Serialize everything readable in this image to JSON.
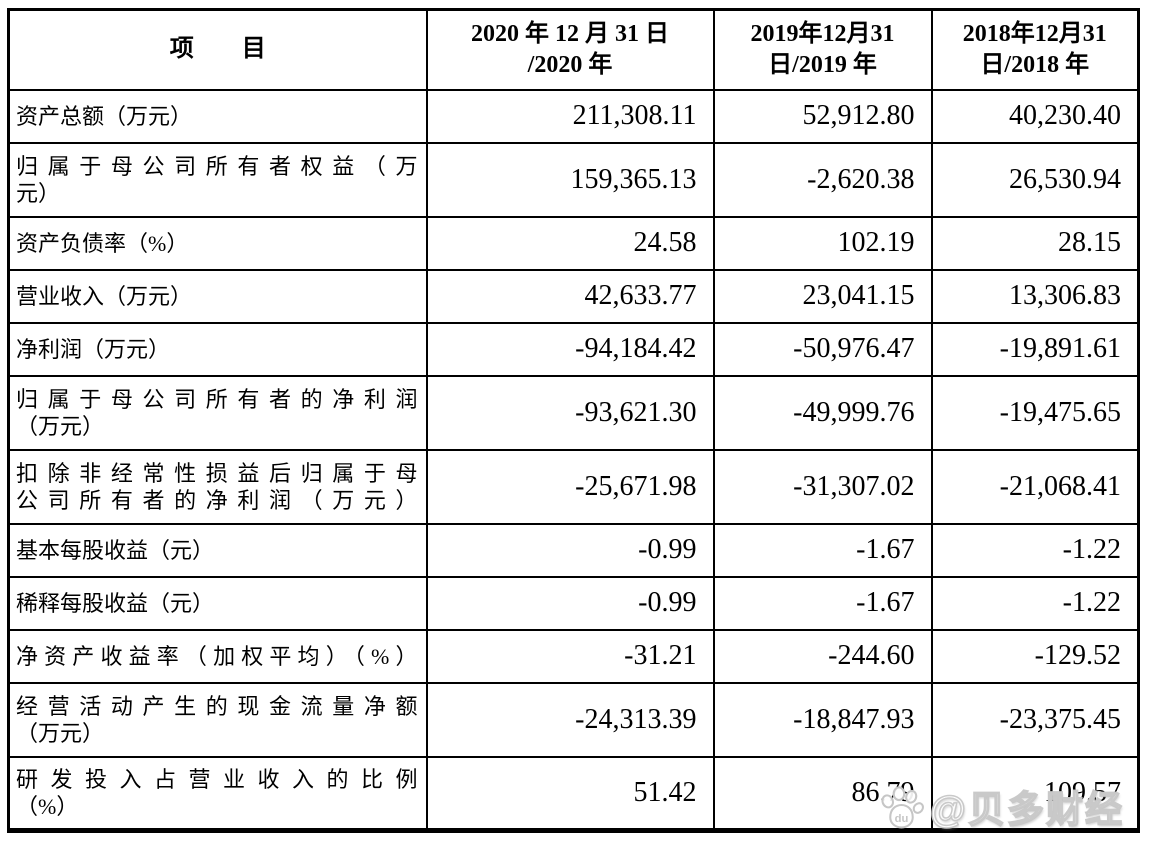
{
  "table": {
    "border_color": "#000000",
    "text_color": "#000000",
    "background": "#ffffff",
    "header": {
      "item_label": "项　　目",
      "year_columns": [
        {
          "line1": "2020 年 12 月 31 日",
          "line2": "/2020 年"
        },
        {
          "line1": "2019年12月31",
          "line2": "日/2019 年"
        },
        {
          "line1": "2018年12月31",
          "line2": "日/2018 年"
        }
      ]
    },
    "rows": [
      {
        "label_lines": [
          "资产总额（万元）"
        ],
        "stretch": [
          false
        ],
        "values": [
          "211,308.11",
          "52,912.80",
          "40,230.40"
        ]
      },
      {
        "label_lines": [
          "归属于母公司所有者权益（万",
          "元）"
        ],
        "stretch": [
          true,
          false
        ],
        "values": [
          "159,365.13",
          "-2,620.38",
          "26,530.94"
        ]
      },
      {
        "label_lines": [
          "资产负债率（%）"
        ],
        "stretch": [
          false
        ],
        "values": [
          "24.58",
          "102.19",
          "28.15"
        ]
      },
      {
        "label_lines": [
          "营业收入（万元）"
        ],
        "stretch": [
          false
        ],
        "values": [
          "42,633.77",
          "23,041.15",
          "13,306.83"
        ]
      },
      {
        "label_lines": [
          "净利润（万元）"
        ],
        "stretch": [
          false
        ],
        "values": [
          "-94,184.42",
          "-50,976.47",
          "-19,891.61"
        ]
      },
      {
        "label_lines": [
          "归属于母公司所有者的净利润",
          "（万元）"
        ],
        "stretch": [
          true,
          false
        ],
        "values": [
          "-93,621.30",
          "-49,999.76",
          "-19,475.65"
        ]
      },
      {
        "label_lines": [
          "扣除非经常性损益后归属于母",
          "公司所有者的净利润（万元）"
        ],
        "stretch": [
          true,
          true
        ],
        "values": [
          "-25,671.98",
          "-31,307.02",
          "-21,068.41"
        ]
      },
      {
        "label_lines": [
          "基本每股收益（元）"
        ],
        "stretch": [
          false
        ],
        "values": [
          "-0.99",
          "-1.67",
          "-1.22"
        ]
      },
      {
        "label_lines": [
          "稀释每股收益（元）"
        ],
        "stretch": [
          false
        ],
        "values": [
          "-0.99",
          "-1.67",
          "-1.22"
        ]
      },
      {
        "label_lines": [
          "净资产收益率（加权平均）（%）"
        ],
        "stretch": [
          true
        ],
        "values": [
          "-31.21",
          "-244.60",
          "-129.52"
        ]
      },
      {
        "label_lines": [
          "经营活动产生的现金流量净额",
          "（万元）"
        ],
        "stretch": [
          true,
          false
        ],
        "values": [
          "-24,313.39",
          "-18,847.93",
          "-23,375.45"
        ]
      },
      {
        "label_lines": [
          "研发投入占营业收入的比例",
          "（%）"
        ],
        "stretch": [
          true,
          false
        ],
        "values": [
          "51.42",
          "86.79",
          "109.57"
        ]
      }
    ]
  },
  "watermark": {
    "icon": "paw-icon",
    "icon_label": "du",
    "handle": "@贝多财经",
    "fill_color": "#ffffff",
    "outline_color": "#c6c6c6"
  }
}
